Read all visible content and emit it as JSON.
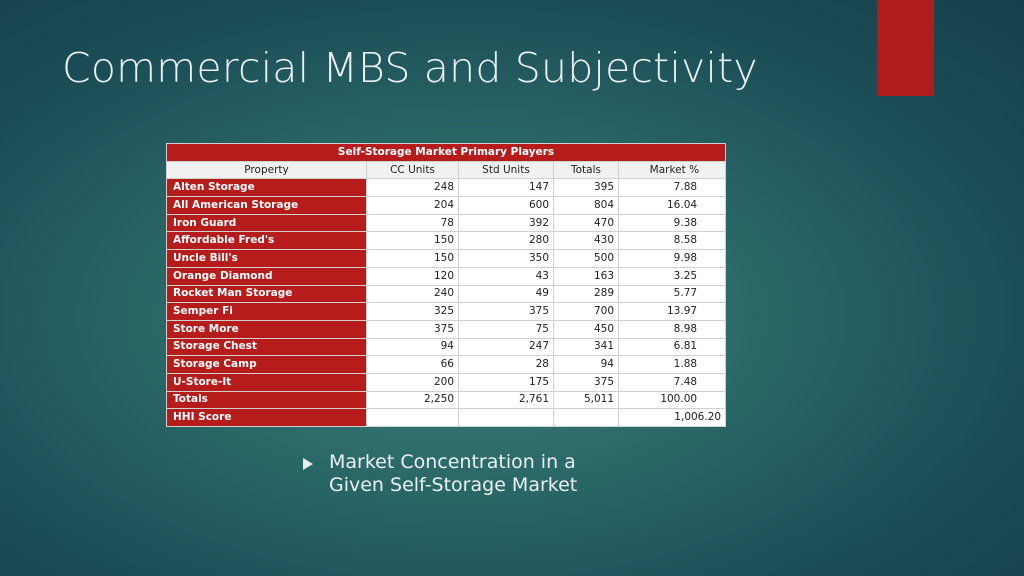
{
  "slide": {
    "title": "Commercial MBS and Subjectivity",
    "accent_color": "#b01c1c"
  },
  "table": {
    "caption": "Self-Storage Market Primary Players",
    "headers": [
      "Property",
      "CC Units",
      "Std Units",
      "Totals",
      "Market %"
    ],
    "rows": [
      {
        "name": "Alten Storage",
        "cc": "248",
        "std": "147",
        "total": "395",
        "market": "7.88"
      },
      {
        "name": "All American Storage",
        "cc": "204",
        "std": "600",
        "total": "804",
        "market": "16.04"
      },
      {
        "name": "Iron Guard",
        "cc": "78",
        "std": "392",
        "total": "470",
        "market": "9.38"
      },
      {
        "name": "Affordable Fred's",
        "cc": "150",
        "std": "280",
        "total": "430",
        "market": "8.58"
      },
      {
        "name": "Uncle Bill's",
        "cc": "150",
        "std": "350",
        "total": "500",
        "market": "9.98"
      },
      {
        "name": "Orange Diamond",
        "cc": "120",
        "std": "43",
        "total": "163",
        "market": "3.25"
      },
      {
        "name": "Rocket Man Storage",
        "cc": "240",
        "std": "49",
        "total": "289",
        "market": "5.77"
      },
      {
        "name": "Semper Fi",
        "cc": "325",
        "std": "375",
        "total": "700",
        "market": "13.97"
      },
      {
        "name": "Store More",
        "cc": "375",
        "std": "75",
        "total": "450",
        "market": "8.98"
      },
      {
        "name": "Storage Chest",
        "cc": "94",
        "std": "247",
        "total": "341",
        "market": "6.81"
      },
      {
        "name": "Storage Camp",
        "cc": "66",
        "std": "28",
        "total": "94",
        "market": "1.88"
      },
      {
        "name": "U-Store-It",
        "cc": "200",
        "std": "175",
        "total": "375",
        "market": "7.48"
      }
    ],
    "totals": {
      "name": "Totals",
      "cc": "2,250",
      "std": "2,761",
      "total": "5,011",
      "market": "100.00"
    },
    "hhi": {
      "name": "HHI Score",
      "value": "1,006.20"
    }
  },
  "bullet": {
    "text": "Market Concentration in a Given Self-Storage Market",
    "icon": "triangle-bullet-icon"
  }
}
